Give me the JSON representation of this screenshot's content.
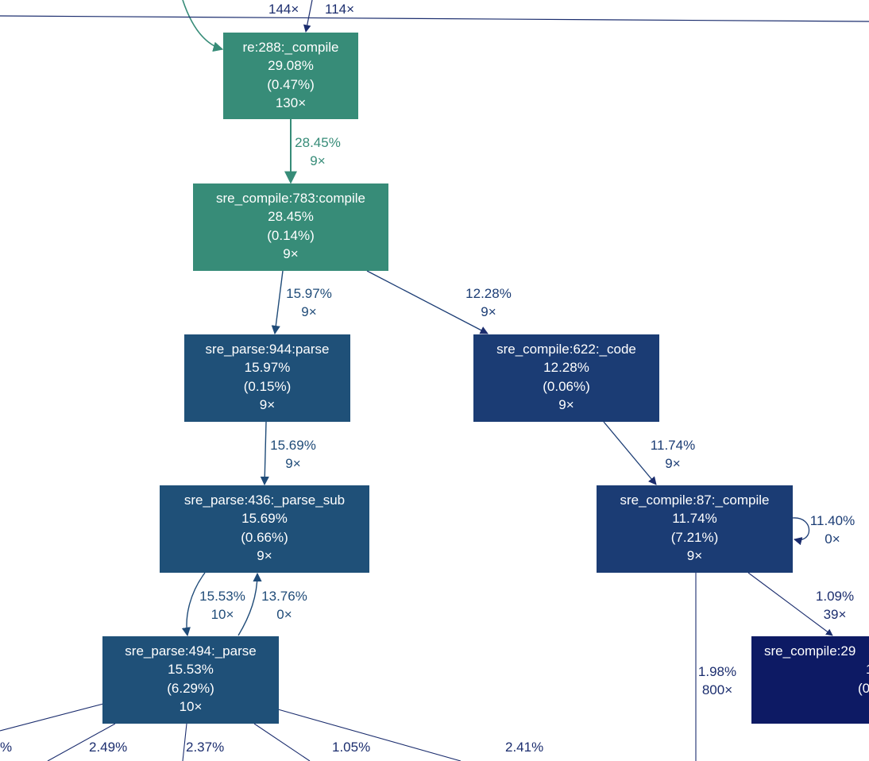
{
  "colors": {
    "teal": "#378c78",
    "blue_mid": "#1f5078",
    "blue_dark": "#1b3c74",
    "navy": "#0d1a64",
    "edge_teal": "#378c78",
    "edge_blue": "#1f4b78",
    "edge_navy": "#1b2d6e"
  },
  "nodes": {
    "re_compile": {
      "name": "re:288:_compile",
      "total": "29.08%",
      "self": "(0.47%)",
      "calls": "130×"
    },
    "sre_compile_compile": {
      "name": "sre_compile:783:compile",
      "total": "28.45%",
      "self": "(0.14%)",
      "calls": "9×"
    },
    "sre_parse_parse": {
      "name": "sre_parse:944:parse",
      "total": "15.97%",
      "self": "(0.15%)",
      "calls": "9×"
    },
    "sre_compile_code": {
      "name": "sre_compile:622:_code",
      "total": "12.28%",
      "self": "(0.06%)",
      "calls": "9×"
    },
    "sre_parse_parse_sub": {
      "name": "sre_parse:436:_parse_sub",
      "total": "15.69%",
      "self": "(0.66%)",
      "calls": "9×"
    },
    "sre_compile_87": {
      "name": "sre_compile:87:_compile",
      "total": "11.74%",
      "self": "(7.21%)",
      "calls": "9×"
    },
    "sre_parse_494": {
      "name": "sre_parse:494:_parse",
      "total": "15.53%",
      "self": "(6.29%)",
      "calls": "10×"
    },
    "sre_compile_29": {
      "name": "sre_compile:29",
      "total": "1",
      "self": "(0",
      "calls": ""
    }
  },
  "edges": {
    "top_left": {
      "pct": "",
      "count": "144×"
    },
    "top_right": {
      "pct": "",
      "count": "114×"
    },
    "re_to_compile": {
      "pct": "28.45%",
      "count": "9×"
    },
    "compile_to_parse": {
      "pct": "15.97%",
      "count": "9×"
    },
    "compile_to_code": {
      "pct": "12.28%",
      "count": "9×"
    },
    "parse_to_parse_sub": {
      "pct": "15.69%",
      "count": "9×"
    },
    "code_to_compile87": {
      "pct": "11.74%",
      "count": "9×"
    },
    "compile87_self": {
      "pct": "11.40%",
      "count": "0×"
    },
    "parse_sub_to_parse494": {
      "pct": "15.53%",
      "count": "10×"
    },
    "parse494_to_parse_sub": {
      "pct": "13.76%",
      "count": "0×"
    },
    "compile87_to_29": {
      "pct": "1.09%",
      "count": "39×"
    },
    "compile87_down": {
      "pct": "1.98%",
      "count": "800×"
    },
    "parse494_out_a": {
      "pct": "%",
      "count": ""
    },
    "parse494_out_b": {
      "pct": "2.49%",
      "count": ""
    },
    "parse494_out_c": {
      "pct": "2.37%",
      "count": ""
    },
    "parse494_out_d": {
      "pct": "1.05%",
      "count": ""
    },
    "parse494_out_e": {
      "pct": "2.41%",
      "count": ""
    }
  }
}
